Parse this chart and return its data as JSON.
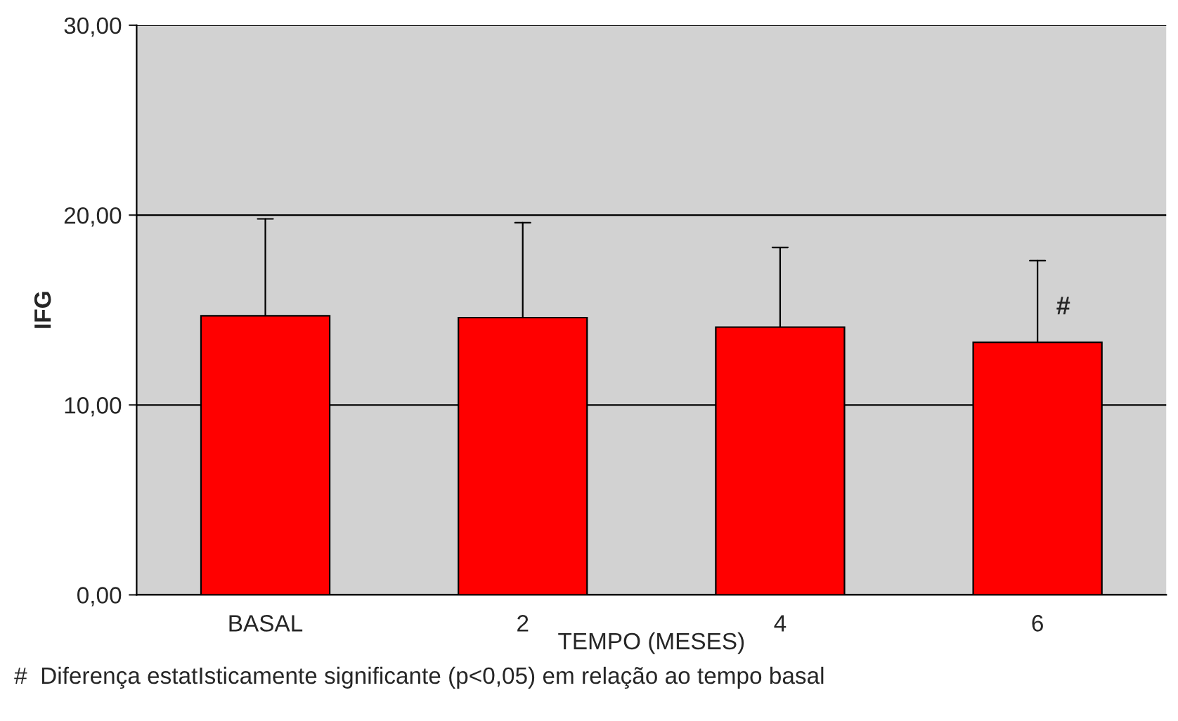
{
  "chart_data": {
    "type": "bar",
    "xlabel": "TEMPO (MESES)",
    "ylabel": "IFG",
    "categories": [
      "BASAL",
      "2",
      "4",
      "6"
    ],
    "values": [
      14.7,
      14.6,
      14.1,
      13.3
    ],
    "color": "#ff0000",
    "errors": [
      [
        14.7,
        19.8
      ],
      [
        14.6,
        19.6
      ],
      [
        14.1,
        18.3
      ],
      [
        13.3,
        17.6
      ]
    ],
    "ylim": [
      0,
      30
    ],
    "yticks": [
      {
        "value": 0,
        "label": "0,00"
      },
      {
        "value": 10,
        "label": "10,00"
      },
      {
        "value": 20,
        "label": "20,00"
      },
      {
        "value": 30,
        "label": "30,00"
      }
    ],
    "grid": "y",
    "annotations": [
      {
        "text": "#",
        "x": "6",
        "y": 14.5
      },
      "#  Diferença estatIsticamente significante (p<0,05) em relação ao tempo basal"
    ]
  }
}
